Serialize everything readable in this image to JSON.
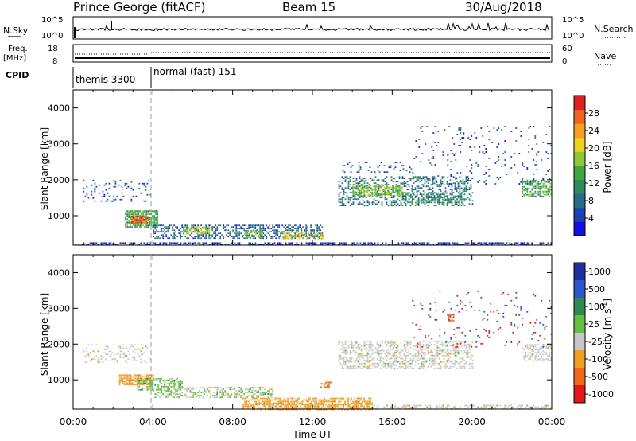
{
  "header": {
    "station": "Prince George (fitACF)",
    "beam": "Beam 15",
    "date": "30/Aug/2018"
  },
  "summary_panels": {
    "nsky": {
      "left_label": "N.Sky",
      "left_ticks": [
        "10^5",
        "10^0"
      ],
      "right_ticks": [
        "10^5",
        "10^0"
      ],
      "right_label": "N.Search"
    },
    "freq": {
      "left_label_1": "Freq.",
      "left_label_2": "[MHz]",
      "left_ticks": [
        "18",
        "8"
      ],
      "right_ticks": [
        "60",
        "0"
      ],
      "right_label": "Nave"
    },
    "cpid": {
      "label": "CPID",
      "modes": [
        {
          "name": "themis 3300",
          "start_hour": 0,
          "end_hour": 4
        },
        {
          "name": "normal (fast) 151",
          "start_hour": 4,
          "end_hour": 24
        }
      ]
    }
  },
  "time_axis": {
    "label": "Time UT",
    "ticks": [
      "00:00",
      "04:00",
      "08:00",
      "12:00",
      "16:00",
      "20:00",
      "00:00"
    ]
  },
  "chart_data": [
    {
      "type": "heatmap",
      "title": "",
      "xlabel": "Time UT",
      "ylabel": "Slant Range [km]",
      "xlim": [
        0,
        24
      ],
      "ylim": [
        180,
        4500
      ],
      "y_ticks": [
        1000,
        2000,
        3000,
        4000
      ],
      "colorbar": {
        "label": "Power [dB]",
        "range": [
          0,
          32
        ],
        "ticks": [
          "4",
          "8",
          "12",
          "16",
          "20",
          "24",
          "28"
        ],
        "colors": [
          "#1010e0",
          "#1a40b4",
          "#2a6a8a",
          "#2e8a60",
          "#3eaa3e",
          "#8cc83a",
          "#f0d020",
          "#f4a020",
          "#ee6420",
          "#e02020"
        ]
      },
      "regions": [
        {
          "t0": 0.1,
          "t1": 24,
          "r0": 185,
          "r1": 260,
          "level": 4,
          "density": 0.55
        },
        {
          "t0": 0.5,
          "t1": 3.9,
          "r0": 1400,
          "r1": 2000,
          "level": 6,
          "density": 0.12
        },
        {
          "t0": 2.6,
          "t1": 4.2,
          "r0": 700,
          "r1": 1150,
          "level": 14,
          "density": 0.85
        },
        {
          "t0": 2.9,
          "t1": 3.7,
          "r0": 780,
          "r1": 1000,
          "level": 27,
          "density": 0.9
        },
        {
          "t0": 4.0,
          "t1": 12.5,
          "r0": 380,
          "r1": 750,
          "level": 7,
          "density": 0.5
        },
        {
          "t0": 5.5,
          "t1": 6.8,
          "r0": 500,
          "r1": 700,
          "level": 18,
          "density": 0.6
        },
        {
          "t0": 8.5,
          "t1": 9.5,
          "r0": 420,
          "r1": 600,
          "level": 16,
          "density": 0.5
        },
        {
          "t0": 10.5,
          "t1": 12.5,
          "r0": 380,
          "r1": 560,
          "level": 20,
          "density": 0.6
        },
        {
          "t0": 13.3,
          "t1": 20.0,
          "r0": 1300,
          "r1": 2100,
          "level": 9,
          "density": 0.35
        },
        {
          "t0": 14.0,
          "t1": 16.5,
          "r0": 1550,
          "r1": 1850,
          "level": 17,
          "density": 0.6
        },
        {
          "t0": 16.5,
          "t1": 19.5,
          "r0": 1350,
          "r1": 1650,
          "level": 12,
          "density": 0.45
        },
        {
          "t0": 22.5,
          "t1": 24.0,
          "r0": 1550,
          "r1": 2000,
          "level": 14,
          "density": 0.6
        },
        {
          "t0": 17.0,
          "t1": 24.0,
          "r0": 1900,
          "r1": 3500,
          "level": 5,
          "density": 0.05
        },
        {
          "t0": 13.5,
          "t1": 17.0,
          "r0": 2200,
          "r1": 2500,
          "level": 5,
          "density": 0.15
        }
      ]
    },
    {
      "type": "heatmap",
      "title": "",
      "xlabel": "Time UT",
      "ylabel": "Slant Range [km]",
      "xlim": [
        0,
        24
      ],
      "ylim": [
        180,
        4500
      ],
      "y_ticks": [
        1000,
        2000,
        3000,
        4000
      ],
      "colorbar": {
        "label": "Velocity [m s^-1]",
        "ticks": [
          "1000",
          "500",
          "100",
          "25",
          "-25",
          "-100",
          "-500",
          "-1000"
        ],
        "colors": [
          "#1c2ea0",
          "#2a56c8",
          "#2e8a52",
          "#66c040",
          "#c8c8c8",
          "#f0a020",
          "#ee6a1a",
          "#e01818"
        ]
      },
      "regions": [
        {
          "t0": 0.5,
          "t1": 3.9,
          "r0": 1500,
          "r1": 2000,
          "class": 4,
          "density": 0.2
        },
        {
          "t0": 2.3,
          "t1": 4.0,
          "r0": 850,
          "r1": 1150,
          "class": 5,
          "density": 0.8
        },
        {
          "t0": 3.2,
          "t1": 5.5,
          "r0": 700,
          "r1": 1050,
          "class": 3,
          "density": 0.55
        },
        {
          "t0": 4.0,
          "t1": 10.0,
          "r0": 500,
          "r1": 800,
          "class": 3,
          "density": 0.3
        },
        {
          "t0": 4.0,
          "t1": 10.0,
          "r0": 500,
          "r1": 800,
          "class": 4,
          "density": 0.25
        },
        {
          "t0": 8.5,
          "t1": 15.0,
          "r0": 180,
          "r1": 500,
          "class": 5,
          "density": 0.65
        },
        {
          "t0": 15.0,
          "t1": 24.0,
          "r0": 190,
          "r1": 300,
          "class": 4,
          "density": 0.45
        },
        {
          "t0": 13.3,
          "t1": 20.0,
          "r0": 1300,
          "r1": 2100,
          "class": 4,
          "density": 0.45
        },
        {
          "t0": 22.5,
          "t1": 24.0,
          "r0": 1550,
          "r1": 2000,
          "class": 4,
          "density": 0.55
        },
        {
          "t0": 12.4,
          "t1": 12.9,
          "r0": 800,
          "r1": 950,
          "class": 6,
          "density": 0.7
        },
        {
          "t0": 18.8,
          "t1": 19.1,
          "r0": 2650,
          "r1": 2850,
          "class": 6,
          "density": 0.7
        },
        {
          "t0": 17.0,
          "t1": 24.0,
          "r0": 1900,
          "r1": 3500,
          "class": 1,
          "density": 0.02
        },
        {
          "t0": 17.0,
          "t1": 24.0,
          "r0": 1900,
          "r1": 3500,
          "class": 7,
          "density": 0.02
        }
      ]
    }
  ]
}
